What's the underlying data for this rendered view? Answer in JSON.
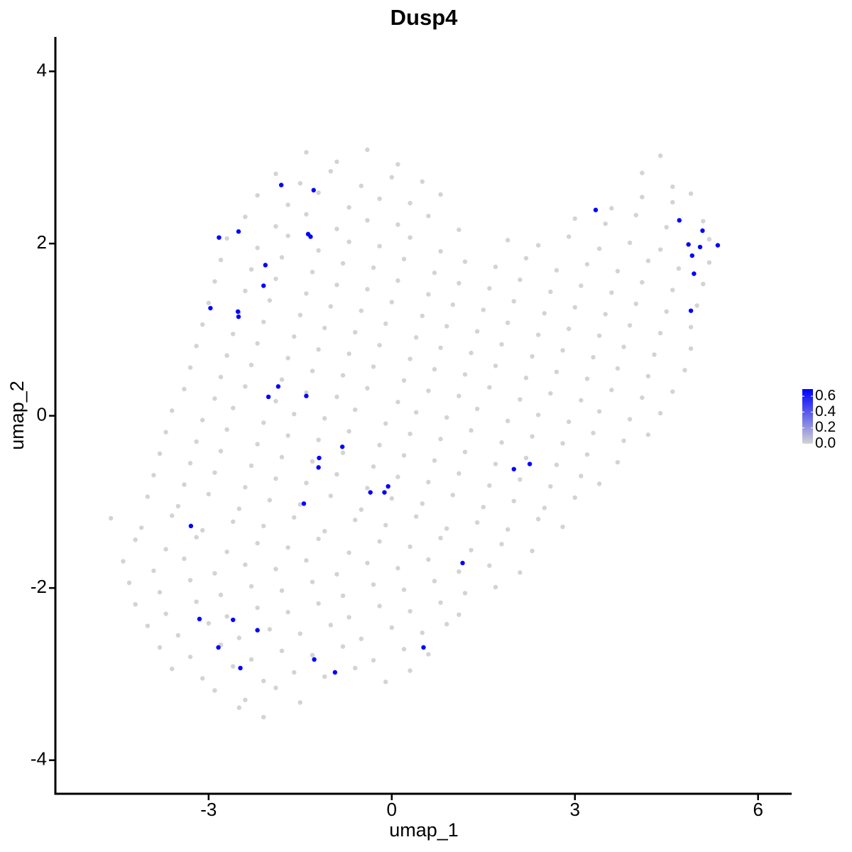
{
  "chart_data": {
    "type": "scatter",
    "title": "Dusp4",
    "x_label": "umap_1",
    "y_label": "umap_2",
    "xlim": [
      -5.51,
      6.55
    ],
    "ylim": [
      -4.39,
      4.4
    ],
    "xticks": [
      -3,
      0,
      3,
      6
    ],
    "yticks": [
      -4,
      -2,
      0,
      2,
      4
    ],
    "colors": [
      "#d3d3d3",
      "#0000ff"
    ],
    "clim": [
      0,
      0.69
    ],
    "colorbar_ticks": [
      {
        "value": 0,
        "label": "0.0"
      },
      0.2,
      0.4,
      0.6
    ],
    "x": [
      -1.4,
      -0.9,
      -0.4,
      0.1,
      4.4,
      -1.9,
      -1.5,
      -1.0,
      -0.5,
      0.0,
      0.5,
      4.1,
      4.6,
      -2.2,
      -1.7,
      -1.2,
      -0.7,
      -0.2,
      0.3,
      0.8,
      3.6,
      4.1,
      4.6,
      4.9,
      -2.4,
      -1.9,
      -1.4,
      -0.9,
      -0.4,
      0.1,
      0.6,
      1.1,
      3.0,
      3.5,
      4.0,
      4.5,
      5.1,
      -2.7,
      -2.2,
      -1.7,
      -1.2,
      -0.7,
      -0.2,
      0.3,
      0.8,
      1.9,
      2.4,
      2.9,
      3.4,
      3.9,
      4.4,
      5.2,
      -2.8,
      -2.3,
      -1.8,
      -1.3,
      -0.8,
      -0.3,
      0.2,
      0.7,
      1.2,
      1.7,
      2.2,
      2.7,
      3.2,
      3.7,
      4.2,
      4.7,
      5.2,
      -2.9,
      -2.4,
      -1.9,
      -1.4,
      -0.9,
      -0.4,
      0.1,
      0.6,
      1.1,
      1.6,
      2.1,
      2.6,
      3.1,
      3.6,
      4.1,
      4.6,
      5.1,
      -3.0,
      -2.5,
      -2.0,
      -1.5,
      -1.0,
      -0.5,
      0.0,
      0.5,
      1.0,
      1.5,
      2.0,
      2.5,
      3.0,
      3.5,
      4.0,
      4.5,
      5.0,
      -3.1,
      -2.6,
      -2.1,
      -1.6,
      -1.1,
      -0.6,
      -0.1,
      0.4,
      0.9,
      1.4,
      1.9,
      2.4,
      2.9,
      3.4,
      3.9,
      4.4,
      4.9,
      -3.2,
      -2.7,
      -2.2,
      -1.7,
      -1.2,
      -0.7,
      -0.2,
      0.3,
      0.8,
      1.3,
      1.8,
      2.3,
      2.8,
      3.3,
      3.8,
      4.3,
      4.9,
      -3.3,
      -2.8,
      -2.3,
      -1.8,
      -1.3,
      -0.8,
      -0.3,
      0.2,
      0.7,
      1.2,
      1.7,
      2.2,
      2.7,
      3.2,
      3.7,
      4.2,
      4.8,
      -3.4,
      -2.9,
      -2.4,
      -1.9,
      -1.4,
      -0.9,
      -0.4,
      0.1,
      0.6,
      1.1,
      1.6,
      2.1,
      2.6,
      3.1,
      3.6,
      4.1,
      4.6,
      -3.6,
      -3.1,
      -2.6,
      -2.1,
      -1.6,
      -1.1,
      -0.6,
      -0.1,
      0.4,
      0.9,
      1.4,
      1.9,
      2.4,
      2.9,
      3.4,
      3.9,
      4.4,
      -3.7,
      -3.2,
      -2.7,
      -2.2,
      -1.7,
      -1.2,
      -0.7,
      -0.2,
      0.3,
      0.8,
      1.3,
      1.8,
      2.3,
      2.8,
      3.3,
      3.8,
      4.2,
      -3.8,
      -3.3,
      -2.8,
      -2.3,
      -1.8,
      -1.3,
      -0.8,
      -0.3,
      0.2,
      0.7,
      1.2,
      1.7,
      2.2,
      2.7,
      3.2,
      3.7,
      -3.9,
      -3.4,
      -2.9,
      -2.4,
      -1.9,
      -1.4,
      -0.9,
      -0.4,
      0.1,
      0.6,
      1.1,
      1.6,
      2.1,
      2.6,
      3.1,
      3.4,
      -4.0,
      -3.5,
      -3.0,
      -2.5,
      -2.0,
      -1.5,
      -1.0,
      -0.5,
      0.0,
      0.5,
      1.0,
      1.5,
      2.0,
      2.5,
      3.0,
      -4.6,
      -4.1,
      -3.6,
      -3.1,
      -2.6,
      -2.1,
      -1.6,
      -1.1,
      -0.6,
      -0.1,
      0.4,
      0.9,
      1.4,
      1.9,
      2.4,
      2.8,
      -4.2,
      -3.7,
      -3.2,
      -2.7,
      -2.2,
      -1.7,
      -1.2,
      -0.7,
      -0.2,
      0.3,
      0.8,
      1.3,
      1.8,
      2.3,
      -4.4,
      -3.9,
      -3.4,
      -2.9,
      -2.4,
      -1.9,
      -1.4,
      -0.9,
      -0.4,
      0.1,
      0.6,
      1.1,
      1.6,
      2.1,
      -4.3,
      -3.8,
      -3.3,
      -2.8,
      -2.3,
      -1.8,
      -1.3,
      -0.8,
      -0.3,
      0.2,
      0.7,
      1.2,
      1.7,
      -4.2,
      -3.7,
      -3.2,
      -2.7,
      -2.2,
      -1.7,
      -1.2,
      -0.7,
      -0.2,
      0.3,
      0.8,
      1.1,
      -4.0,
      -3.5,
      -3.0,
      -2.5,
      -2.0,
      -1.5,
      -1.0,
      -0.5,
      0.0,
      0.5,
      0.9,
      -3.8,
      -3.3,
      -2.8,
      -2.3,
      -1.8,
      -1.3,
      -0.8,
      -0.3,
      0.2,
      0.6,
      -3.6,
      -3.1,
      -2.6,
      -2.1,
      -1.6,
      -1.1,
      -0.6,
      -0.1,
      0.3,
      -2.9,
      -2.4,
      -1.9,
      -1.5,
      -2.5,
      -2.1,
      -1.81,
      -1.28,
      -2.83,
      -2.51,
      -1.37,
      -1.33,
      -2.07,
      -2.1,
      -2.97,
      -2.52,
      -2.51,
      -1.86,
      -2.02,
      -1.4,
      -0.81,
      -1.19,
      -1.2,
      -0.35,
      -0.12,
      -0.06,
      -1.44,
      -3.29,
      1.16,
      2.0,
      2.26,
      3.34,
      4.71,
      5.09,
      4.86,
      5.05,
      5.34,
      4.92,
      4.95,
      4.9,
      -3.15,
      -2.6,
      -2.2,
      -2.84,
      0.52,
      -2.48,
      -1.27,
      -0.93
    ],
    "values": [
      3.06,
      2.95,
      3.09,
      2.92,
      3.02,
      2.81,
      2.7,
      2.84,
      2.67,
      2.77,
      2.72,
      2.82,
      2.66,
      2.56,
      2.45,
      2.59,
      2.42,
      2.52,
      2.47,
      2.57,
      2.41,
      2.54,
      2.48,
      2.58,
      2.31,
      2.2,
      2.34,
      2.17,
      2.27,
      2.22,
      2.32,
      2.16,
      2.29,
      2.23,
      2.33,
      2.19,
      2.26,
      2.06,
      1.95,
      2.09,
      1.92,
      2.02,
      1.97,
      2.07,
      1.91,
      2.04,
      1.98,
      2.08,
      1.94,
      2.01,
      1.93,
      2.05,
      1.81,
      1.7,
      1.84,
      1.67,
      1.77,
      1.72,
      1.82,
      1.66,
      1.79,
      1.73,
      1.83,
      1.69,
      1.76,
      1.68,
      1.8,
      1.71,
      1.78,
      1.56,
      1.45,
      1.59,
      1.42,
      1.52,
      1.47,
      1.57,
      1.41,
      1.54,
      1.48,
      1.58,
      1.44,
      1.51,
      1.43,
      1.55,
      1.46,
      1.53,
      1.31,
      1.2,
      1.34,
      1.17,
      1.27,
      1.22,
      1.32,
      1.16,
      1.29,
      1.23,
      1.33,
      1.19,
      1.26,
      1.18,
      1.3,
      1.21,
      1.28,
      1.06,
      0.95,
      1.09,
      0.92,
      1.02,
      0.97,
      1.07,
      0.91,
      1.04,
      0.98,
      1.08,
      0.94,
      1.01,
      0.93,
      1.05,
      0.96,
      1.03,
      0.81,
      0.7,
      0.84,
      0.67,
      0.77,
      0.72,
      0.82,
      0.66,
      0.79,
      0.73,
      0.83,
      0.69,
      0.76,
      0.68,
      0.8,
      0.71,
      0.78,
      0.56,
      0.45,
      0.59,
      0.42,
      0.52,
      0.47,
      0.57,
      0.41,
      0.54,
      0.48,
      0.58,
      0.44,
      0.51,
      0.43,
      0.55,
      0.46,
      0.53,
      0.31,
      0.2,
      0.34,
      0.17,
      0.27,
      0.22,
      0.32,
      0.16,
      0.29,
      0.23,
      0.33,
      0.19,
      0.26,
      0.18,
      0.3,
      0.21,
      0.28,
      0.06,
      -0.05,
      0.09,
      -0.08,
      0.02,
      -0.03,
      0.07,
      -0.09,
      0.04,
      -0.02,
      0.08,
      -0.06,
      0.01,
      -0.07,
      0.05,
      -0.04,
      0.03,
      -0.19,
      -0.3,
      -0.16,
      -0.33,
      -0.23,
      -0.28,
      -0.18,
      -0.34,
      -0.21,
      -0.27,
      -0.17,
      -0.31,
      -0.24,
      -0.32,
      -0.2,
      -0.29,
      -0.22,
      -0.44,
      -0.55,
      -0.41,
      -0.58,
      -0.48,
      -0.53,
      -0.43,
      -0.59,
      -0.46,
      -0.52,
      -0.42,
      -0.56,
      -0.49,
      -0.57,
      -0.45,
      -0.54,
      -0.69,
      -0.8,
      -0.66,
      -0.83,
      -0.73,
      -0.78,
      -0.68,
      -0.84,
      -0.71,
      -0.77,
      -0.67,
      -0.81,
      -0.74,
      -0.82,
      -0.7,
      -0.79,
      -0.94,
      -1.05,
      -0.91,
      -1.08,
      -0.98,
      -1.03,
      -0.93,
      -1.09,
      -0.96,
      -1.02,
      -0.92,
      -1.06,
      -0.99,
      -1.07,
      -0.95,
      -1.19,
      -1.3,
      -1.16,
      -1.33,
      -1.23,
      -1.28,
      -1.18,
      -1.34,
      -1.21,
      -1.27,
      -1.17,
      -1.31,
      -1.24,
      -1.32,
      -1.2,
      -1.29,
      -1.44,
      -1.55,
      -1.41,
      -1.58,
      -1.48,
      -1.53,
      -1.43,
      -1.59,
      -1.46,
      -1.52,
      -1.42,
      -1.56,
      -1.49,
      -1.57,
      -1.69,
      -1.8,
      -1.66,
      -1.83,
      -1.73,
      -1.78,
      -1.68,
      -1.84,
      -1.71,
      -1.77,
      -1.67,
      -1.81,
      -1.74,
      -1.82,
      -1.94,
      -2.05,
      -1.91,
      -2.08,
      -1.98,
      -2.03,
      -1.93,
      -2.09,
      -1.96,
      -2.02,
      -1.92,
      -2.06,
      -1.99,
      -2.19,
      -2.3,
      -2.16,
      -2.33,
      -2.23,
      -2.28,
      -2.18,
      -2.34,
      -2.21,
      -2.27,
      -2.17,
      -2.31,
      -2.44,
      -2.55,
      -2.41,
      -2.58,
      -2.48,
      -2.53,
      -2.43,
      -2.59,
      -2.46,
      -2.52,
      -2.42,
      -2.69,
      -2.8,
      -2.66,
      -2.83,
      -2.73,
      -2.78,
      -2.68,
      -2.84,
      -2.71,
      -2.77,
      -2.94,
      -3.05,
      -2.91,
      -3.08,
      -2.98,
      -3.03,
      -2.93,
      -3.09,
      -2.96,
      -3.19,
      -3.3,
      -3.16,
      -3.33,
      -3.39,
      -3.5,
      2.68,
      2.62,
      2.07,
      2.14,
      2.11,
      2.08,
      1.75,
      1.51,
      1.25,
      1.21,
      1.15,
      0.34,
      0.22,
      0.23,
      -0.36,
      -0.49,
      -0.6,
      -0.89,
      -0.89,
      -0.82,
      -1.02,
      -1.28,
      -1.71,
      -0.62,
      -0.56,
      2.39,
      2.27,
      2.15,
      1.99,
      1.96,
      1.98,
      1.86,
      1.65,
      1.22,
      -2.36,
      -2.37,
      -2.49,
      -2.69,
      -2.69,
      -2.93,
      -2.83,
      -2.98
    ],
    "expression": [
      0,
      0,
      0,
      0,
      0,
      0,
      0,
      0,
      0,
      0,
      0,
      0,
      0,
      0,
      0,
      0,
      0,
      0,
      0,
      0,
      0,
      0,
      0,
      0,
      0,
      0,
      0,
      0,
      0,
      0,
      0,
      0,
      0,
      0,
      0,
      0,
      0,
      0,
      0,
      0,
      0,
      0,
      0,
      0,
      0,
      0,
      0,
      0,
      0,
      0,
      0,
      0,
      0,
      0,
      0,
      0,
      0,
      0,
      0,
      0,
      0,
      0,
      0,
      0,
      0,
      0,
      0,
      0,
      0,
      0,
      0,
      0,
      0,
      0,
      0,
      0,
      0,
      0,
      0,
      0,
      0,
      0,
      0,
      0,
      0,
      0,
      0,
      0,
      0,
      0,
      0,
      0,
      0,
      0,
      0,
      0,
      0,
      0,
      0,
      0,
      0,
      0,
      0,
      0,
      0,
      0,
      0,
      0,
      0,
      0,
      0,
      0,
      0,
      0,
      0,
      0,
      0,
      0,
      0,
      0,
      0,
      0,
      0,
      0,
      0,
      0,
      0,
      0,
      0,
      0,
      0,
      0,
      0,
      0,
      0,
      0,
      0,
      0,
      0,
      0,
      0,
      0,
      0,
      0,
      0,
      0,
      0,
      0,
      0,
      0,
      0,
      0,
      0,
      0,
      0,
      0,
      0,
      0,
      0,
      0,
      0,
      0,
      0,
      0,
      0,
      0,
      0,
      0,
      0,
      0,
      0,
      0,
      0,
      0,
      0,
      0,
      0,
      0,
      0,
      0,
      0,
      0,
      0,
      0,
      0,
      0,
      0,
      0,
      0,
      0,
      0,
      0,
      0,
      0,
      0,
      0,
      0,
      0,
      0,
      0,
      0,
      0,
      0,
      0,
      0,
      0,
      0,
      0,
      0,
      0,
      0,
      0,
      0,
      0,
      0,
      0,
      0,
      0,
      0,
      0,
      0,
      0,
      0,
      0,
      0,
      0,
      0,
      0,
      0,
      0,
      0,
      0,
      0,
      0,
      0,
      0,
      0,
      0,
      0,
      0,
      0,
      0,
      0,
      0,
      0,
      0,
      0,
      0,
      0,
      0,
      0,
      0,
      0,
      0,
      0,
      0,
      0,
      0,
      0,
      0,
      0,
      0,
      0,
      0,
      0,
      0,
      0,
      0,
      0,
      0,
      0,
      0,
      0,
      0,
      0,
      0,
      0,
      0,
      0,
      0,
      0,
      0,
      0,
      0,
      0,
      0,
      0,
      0,
      0,
      0,
      0,
      0,
      0,
      0,
      0,
      0,
      0,
      0,
      0,
      0,
      0,
      0,
      0,
      0,
      0,
      0,
      0,
      0,
      0,
      0,
      0,
      0,
      0,
      0,
      0,
      0,
      0,
      0,
      0,
      0,
      0,
      0,
      0,
      0,
      0,
      0,
      0,
      0,
      0,
      0,
      0,
      0,
      0,
      0,
      0,
      0,
      0,
      0,
      0,
      0,
      0,
      0,
      0,
      0,
      0,
      0,
      0,
      0,
      0,
      0,
      0,
      0,
      0,
      0,
      0,
      0,
      0,
      0.69,
      0.69,
      0.69,
      0.69,
      0.69,
      0.69,
      0.69,
      0.69,
      0.69,
      0.69,
      0.69,
      0.69,
      0.69,
      0.69,
      0.69,
      0.69,
      0.69,
      0.69,
      0.69,
      0.69,
      0.69,
      0.69,
      0.69,
      0.69,
      0.69,
      0.69,
      0.69,
      0.69,
      0.69,
      0.69,
      0.69,
      0.69,
      0.69,
      0.69,
      0.69,
      0.69,
      0.69,
      0.69,
      0.69,
      0.69,
      0.69,
      0.69
    ]
  }
}
